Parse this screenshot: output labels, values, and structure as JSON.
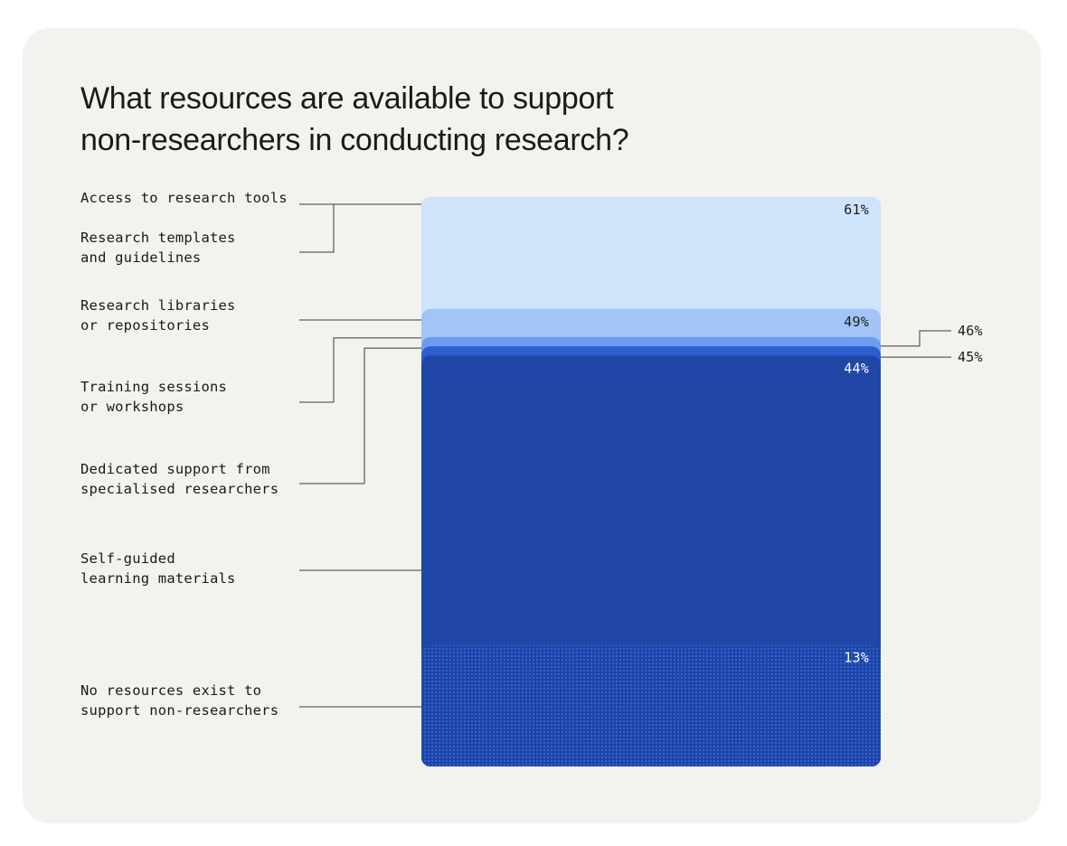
{
  "title_lines": [
    "What resources are available to support",
    "non-researchers in conducting research?"
  ],
  "colors": {
    "card": "#f2f2ee",
    "leader": "#3a3a3a",
    "text_dark": "#1a1a1a",
    "text_light": "#ffffff"
  },
  "chart_data": {
    "type": "area",
    "title": "What resources are available to support non-researchers in conducting research?",
    "ylim": [
      0,
      61
    ],
    "categories": [
      {
        "label": [
          "Access to research tools"
        ],
        "value": 61,
        "value_label": "61%",
        "color": "#cfe3fb"
      },
      {
        "label": [
          "Research templates",
          "and guidelines"
        ],
        "value": 61,
        "value_label": "",
        "color": "#cfe3fb"
      },
      {
        "label": [
          "Research libraries",
          "or repositories"
        ],
        "value": 49,
        "value_label": "49%",
        "color": "#a2c4f7"
      },
      {
        "label": [
          "Training sessions",
          "or workshops"
        ],
        "value": 46,
        "value_label": "46%",
        "color": "#6d9df0"
      },
      {
        "label": [
          "Dedicated support from",
          "specialised researchers"
        ],
        "value": 45,
        "value_label": "45%",
        "color": "#2b5ed0"
      },
      {
        "label": [
          "Self-guided",
          "learning materials"
        ],
        "value": 44,
        "value_label": "44%",
        "color": "#2047a6"
      },
      {
        "label": [
          "No resources exist to",
          "support non-researchers"
        ],
        "value": 13,
        "value_label": "13%",
        "color": "#2a58cc",
        "pattern": "dots"
      }
    ]
  }
}
